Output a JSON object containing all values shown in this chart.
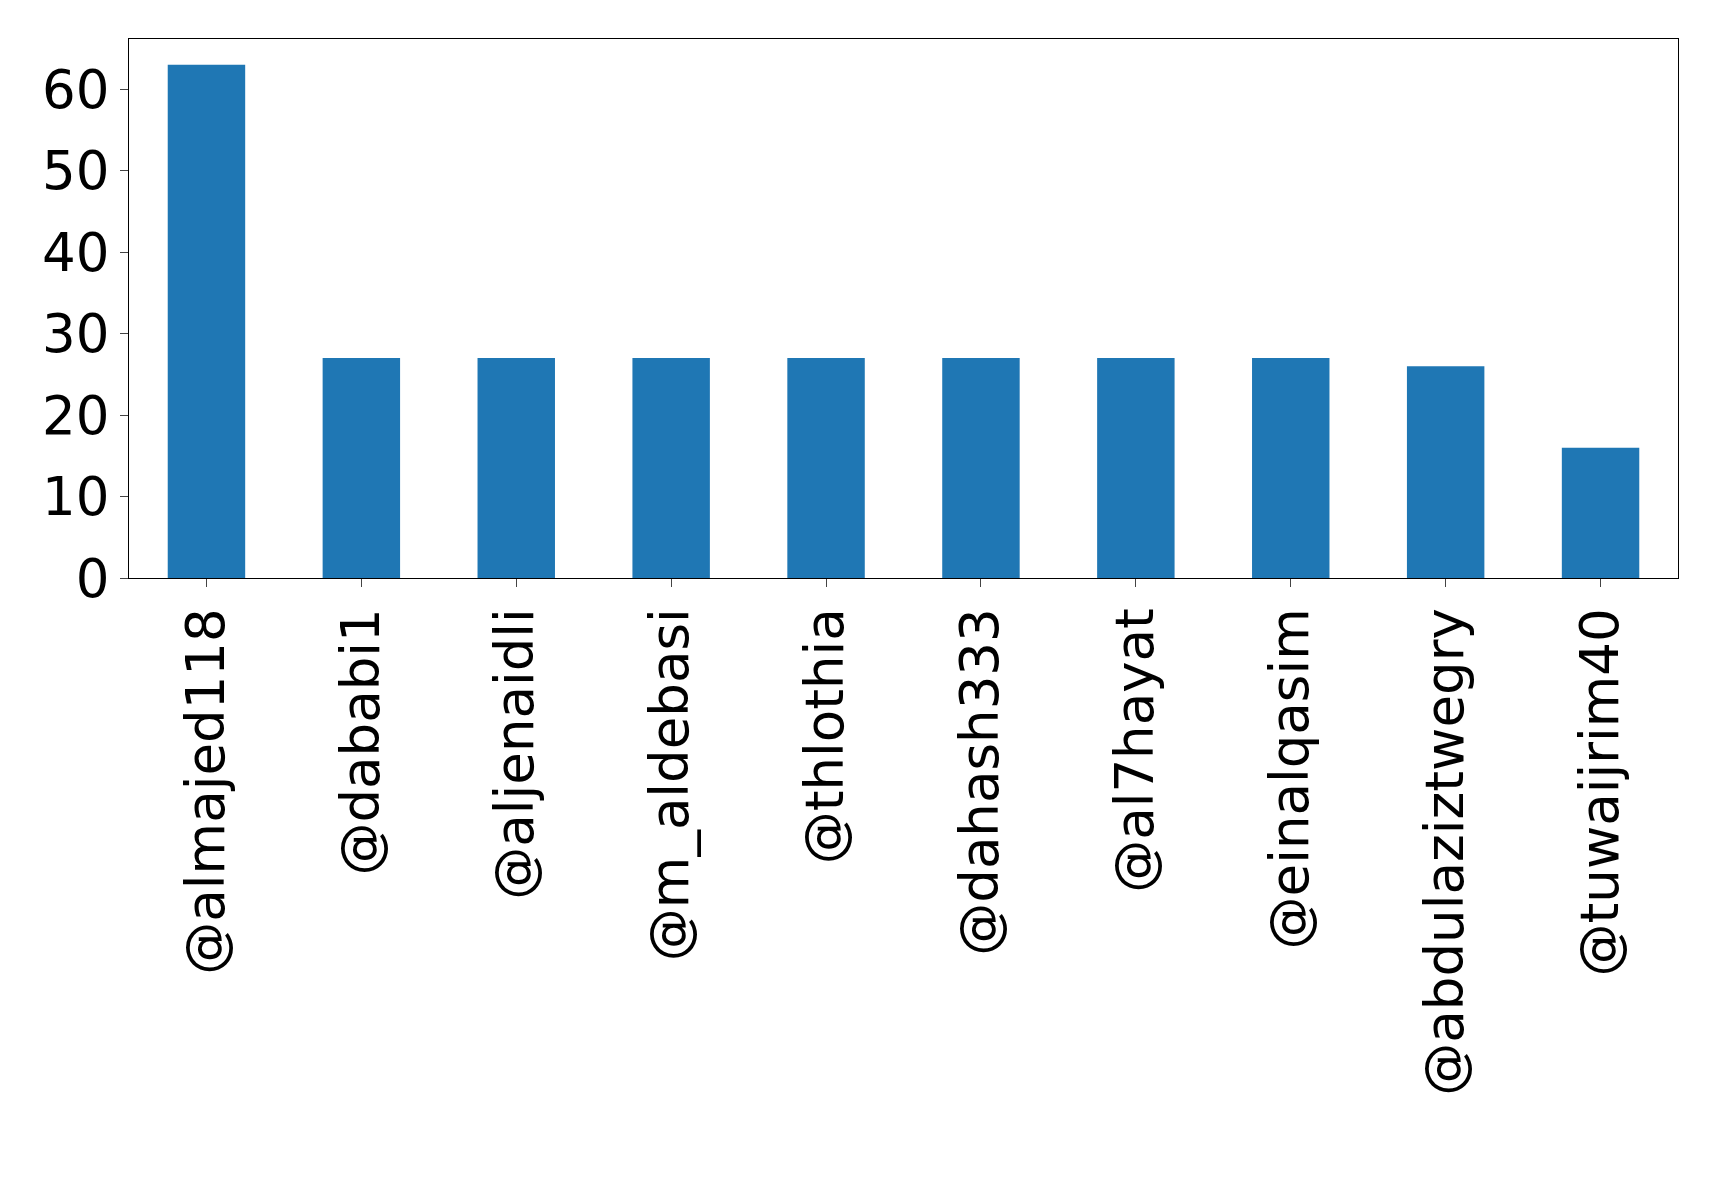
{
  "chart_data": {
    "type": "bar",
    "categories": [
      "@almajed118",
      "@dababi1",
      "@aljenaidli",
      "@m_aldebasi",
      "@thlothia",
      "@dahash333",
      "@al7hayat",
      "@einalqasim",
      "@abdulaziztwegry",
      "@tuwaijrim40"
    ],
    "values": [
      63,
      27,
      27,
      27,
      27,
      27,
      27,
      27,
      26,
      16
    ],
    "color": "#1f77b4",
    "ylim": [
      0,
      66.15
    ],
    "yticks": [
      0,
      10,
      20,
      30,
      40,
      50,
      60
    ]
  }
}
